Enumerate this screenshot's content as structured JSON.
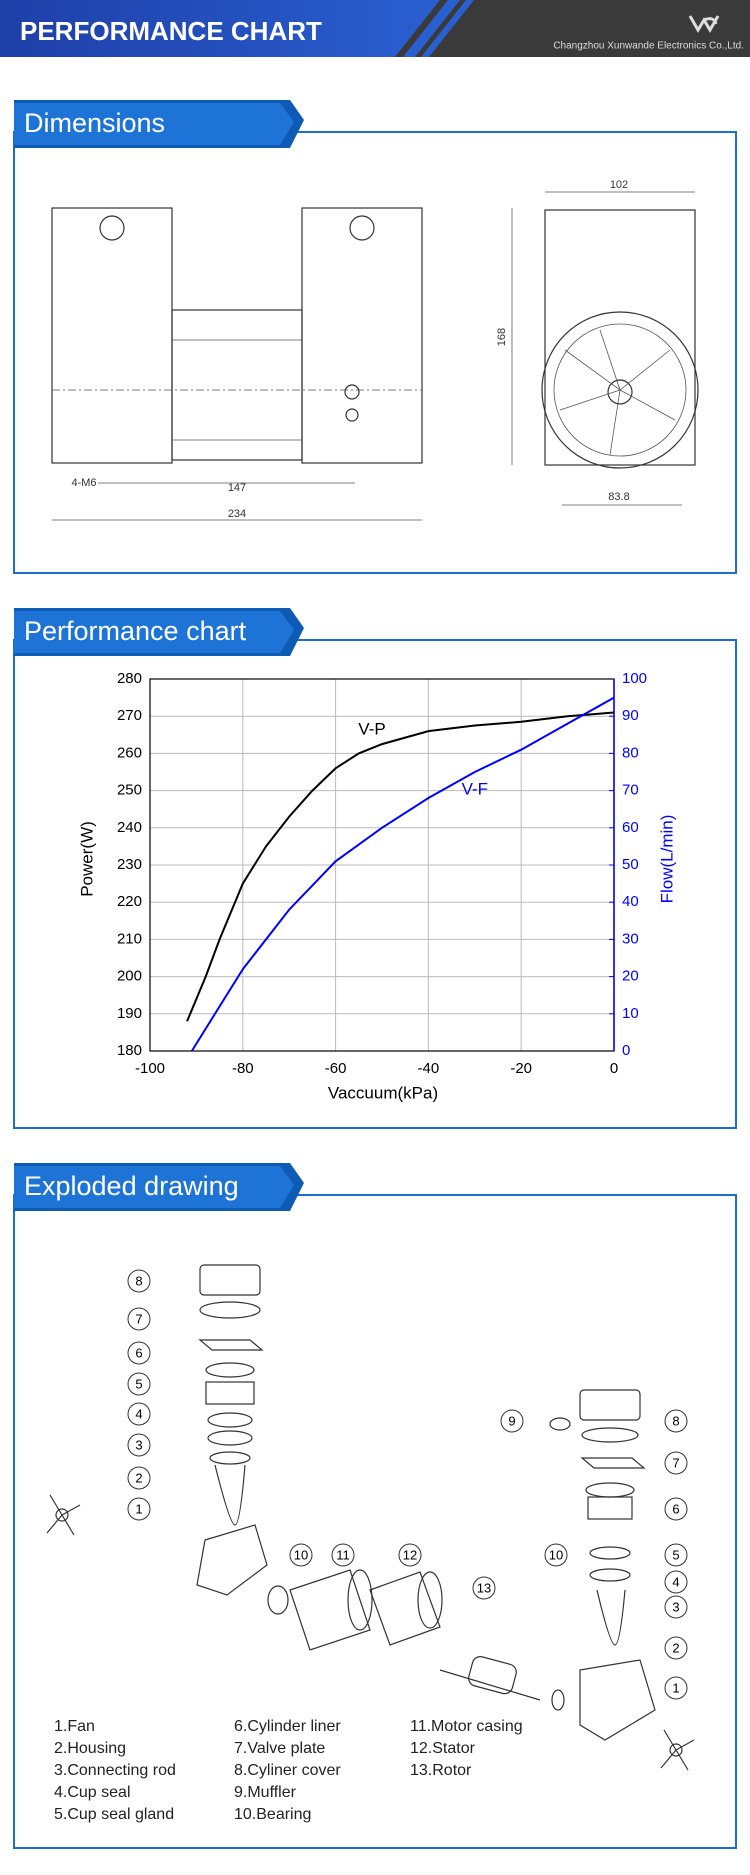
{
  "header": {
    "title": "PERFORMANCE CHART",
    "company": "Changzhou Xunwande Electronics Co.,Ltd."
  },
  "dimensions": {
    "title": "Dimensions",
    "labels": [
      "102",
      "168",
      "83.8",
      "147",
      "234",
      "4-M6"
    ]
  },
  "performance": {
    "title": "Performance chart"
  },
  "chart_data": {
    "type": "line",
    "x_label": "Vaccuum(kPa)",
    "y_label": "Power(W)",
    "y2_label": "Flow(L/min)",
    "xlim": [
      -100,
      0
    ],
    "xticks": [
      -100,
      -80,
      -60,
      -40,
      -20,
      0
    ],
    "ylim": [
      180,
      280
    ],
    "yticks": [
      180,
      190,
      200,
      210,
      220,
      230,
      240,
      250,
      260,
      270,
      280
    ],
    "y2lim": [
      0,
      100
    ],
    "y2ticks": [
      0,
      10,
      20,
      30,
      40,
      50,
      60,
      70,
      80,
      90,
      100
    ],
    "grid": true,
    "series": [
      {
        "name": "V-P",
        "color": "#000000",
        "x": [
          -92,
          -88,
          -85,
          -80,
          -75,
          -70,
          -65,
          -60,
          -55,
          -50,
          -40,
          -30,
          -20,
          -10,
          0
        ],
        "values": [
          188,
          200,
          210,
          225,
          235,
          243,
          250,
          256,
          260,
          262.5,
          266,
          267.5,
          268.5,
          270,
          271
        ]
      },
      {
        "name": "V-F",
        "color": "#0000ff",
        "axis": "y2",
        "x": [
          -91,
          -85,
          -80,
          -70,
          -60,
          -50,
          -40,
          -30,
          -20,
          -10,
          0
        ],
        "values": [
          0,
          12,
          22,
          38,
          51,
          60,
          68,
          75,
          81,
          88,
          95
        ]
      }
    ]
  },
  "exploded": {
    "title": "Exploded drawing",
    "callouts": [
      "8",
      "7",
      "6",
      "5",
      "4",
      "3",
      "2",
      "1",
      "10",
      "11",
      "12",
      "13",
      "10",
      "9",
      "8",
      "7",
      "6",
      "5",
      "4",
      "3",
      "2",
      "1"
    ],
    "parts": [
      "1.Fan",
      "2.Housing",
      "3.Connecting rod",
      "4.Cup seal",
      "5.Cup seal gland",
      "6.Cylinder liner",
      "7.Valve plate",
      "8.Cyliner cover",
      "9.Muffler",
      "10.Bearing",
      "11.Motor casing",
      "12.Stator",
      "13.Rotor"
    ]
  }
}
